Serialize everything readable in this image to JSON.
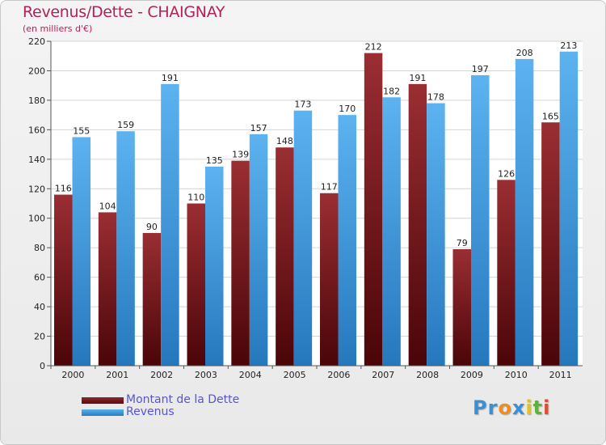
{
  "chart_data": {
    "type": "bar",
    "title": "Revenus/Dette - CHAIGNAY",
    "subtitle": "(en milliers d'€)",
    "categories": [
      "2000",
      "2001",
      "2002",
      "2003",
      "2004",
      "2005",
      "2006",
      "2007",
      "2008",
      "2009",
      "2010",
      "2011"
    ],
    "series": [
      {
        "name": "Montant de la Dette",
        "color": "#7a1a1e",
        "values": [
          116,
          104,
          90,
          110,
          139,
          148,
          117,
          212,
          191,
          79,
          126,
          165
        ]
      },
      {
        "name": "Revenus",
        "color": "#4aa3e8",
        "values": [
          155,
          159,
          191,
          135,
          157,
          173,
          170,
          182,
          178,
          197,
          208,
          213
        ]
      }
    ],
    "ylim": [
      0,
      220
    ],
    "yticks": [
      0,
      20,
      40,
      60,
      80,
      100,
      120,
      140,
      160,
      180,
      200,
      220
    ],
    "grid": true,
    "legend_position": "bottom-left"
  },
  "logo": {
    "letters": [
      {
        "ch": "P",
        "color": "#3b8fd6"
      },
      {
        "ch": "r",
        "color": "#3b8fd6"
      },
      {
        "ch": "o",
        "color": "#f08c1e"
      },
      {
        "ch": "x",
        "color": "#3b8fd6"
      },
      {
        "ch": "i",
        "color": "#e8c21a"
      },
      {
        "ch": "t",
        "color": "#57b82e"
      },
      {
        "ch": "i",
        "color": "#e84a2a"
      }
    ]
  }
}
